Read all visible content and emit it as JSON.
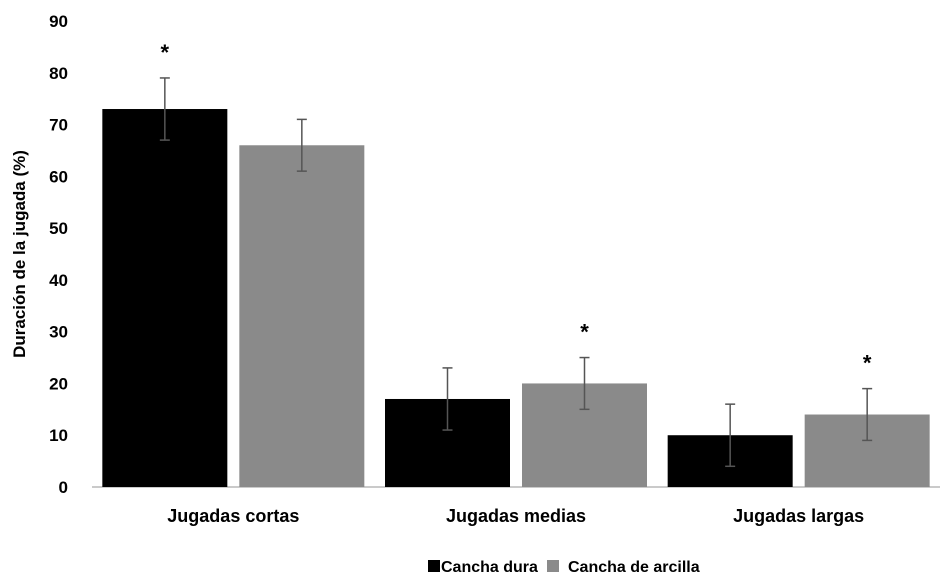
{
  "chart_data": {
    "type": "bar",
    "title": "",
    "xlabel": "",
    "ylabel": "Duración de la jugada (%)",
    "ylim": [
      0,
      90
    ],
    "yticks": [
      0,
      10,
      20,
      30,
      40,
      50,
      60,
      70,
      80,
      90
    ],
    "grid": false,
    "legend_position": "bottom-center",
    "categories": [
      "Jugadas cortas",
      "Jugadas medias",
      "Jugadas largas"
    ],
    "series": [
      {
        "name": "Cancha dura",
        "color": "#000000",
        "values": [
          73,
          17,
          10
        ],
        "error": [
          6,
          6,
          6
        ],
        "significance": [
          "*",
          "",
          ""
        ]
      },
      {
        "name": "Cancha de arcilla",
        "color": "#8a8a8a",
        "values": [
          66,
          20,
          14
        ],
        "error": [
          5,
          5,
          5
        ],
        "significance": [
          "",
          "*",
          "*"
        ]
      }
    ]
  }
}
